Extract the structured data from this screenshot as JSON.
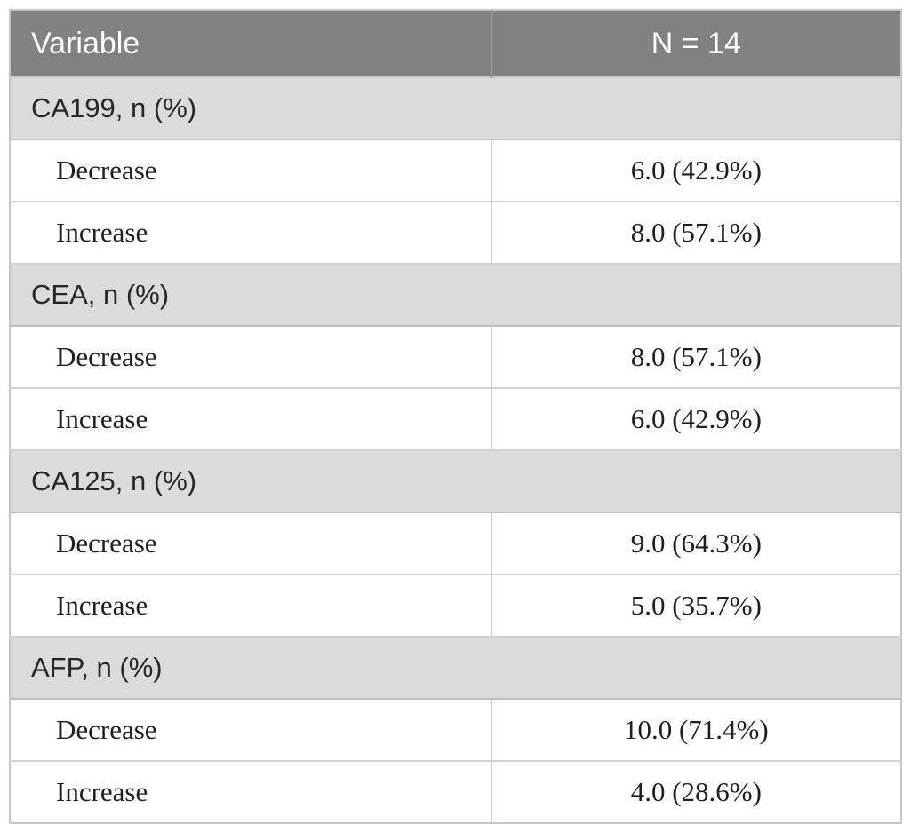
{
  "table": {
    "header": {
      "col1": "Variable",
      "col2": "N = 14"
    },
    "sections": [
      {
        "label": "CA199, n (%)",
        "rows": [
          {
            "label": "Decrease",
            "value": "6.0 (42.9%)"
          },
          {
            "label": "Increase",
            "value": "8.0 (57.1%)"
          }
        ]
      },
      {
        "label": "CEA, n (%)",
        "rows": [
          {
            "label": "Decrease",
            "value": "8.0 (57.1%)"
          },
          {
            "label": "Increase",
            "value": "6.0 (42.9%)"
          }
        ]
      },
      {
        "label": "CA125, n (%)",
        "rows": [
          {
            "label": "Decrease",
            "value": "9.0 (64.3%)"
          },
          {
            "label": "Increase",
            "value": "5.0 (35.7%)"
          }
        ]
      },
      {
        "label": "AFP, n (%)",
        "rows": [
          {
            "label": "Decrease",
            "value": "10.0 (71.4%)"
          },
          {
            "label": "Increase",
            "value": "4.0 (28.6%)"
          }
        ]
      }
    ],
    "colors": {
      "header_bg": "#818181",
      "header_text": "#ffffff",
      "header_divider": "#9c9c9c",
      "section_bg": "#dbdbdb",
      "row_border": "#c9c9c9",
      "outer_border": "#c6c6c6",
      "data_text": "#1f1f1f"
    }
  },
  "chart_data": {
    "type": "table",
    "title": "",
    "columns": [
      "Variable",
      "N = 14"
    ],
    "rows": [
      [
        "CA199, n (%)",
        ""
      ],
      [
        "Decrease",
        "6.0 (42.9%)"
      ],
      [
        "Increase",
        "8.0 (57.1%)"
      ],
      [
        "CEA, n (%)",
        ""
      ],
      [
        "Decrease",
        "8.0 (57.1%)"
      ],
      [
        "Increase",
        "6.0 (42.9%)"
      ],
      [
        "CA125, n (%)",
        ""
      ],
      [
        "Decrease",
        "9.0 (64.3%)"
      ],
      [
        "Increase",
        "5.0 (35.7%)"
      ],
      [
        "AFP, n (%)",
        ""
      ],
      [
        "Decrease",
        "10.0 (71.4%)"
      ],
      [
        "Increase",
        "4.0 (28.6%)"
      ]
    ]
  }
}
